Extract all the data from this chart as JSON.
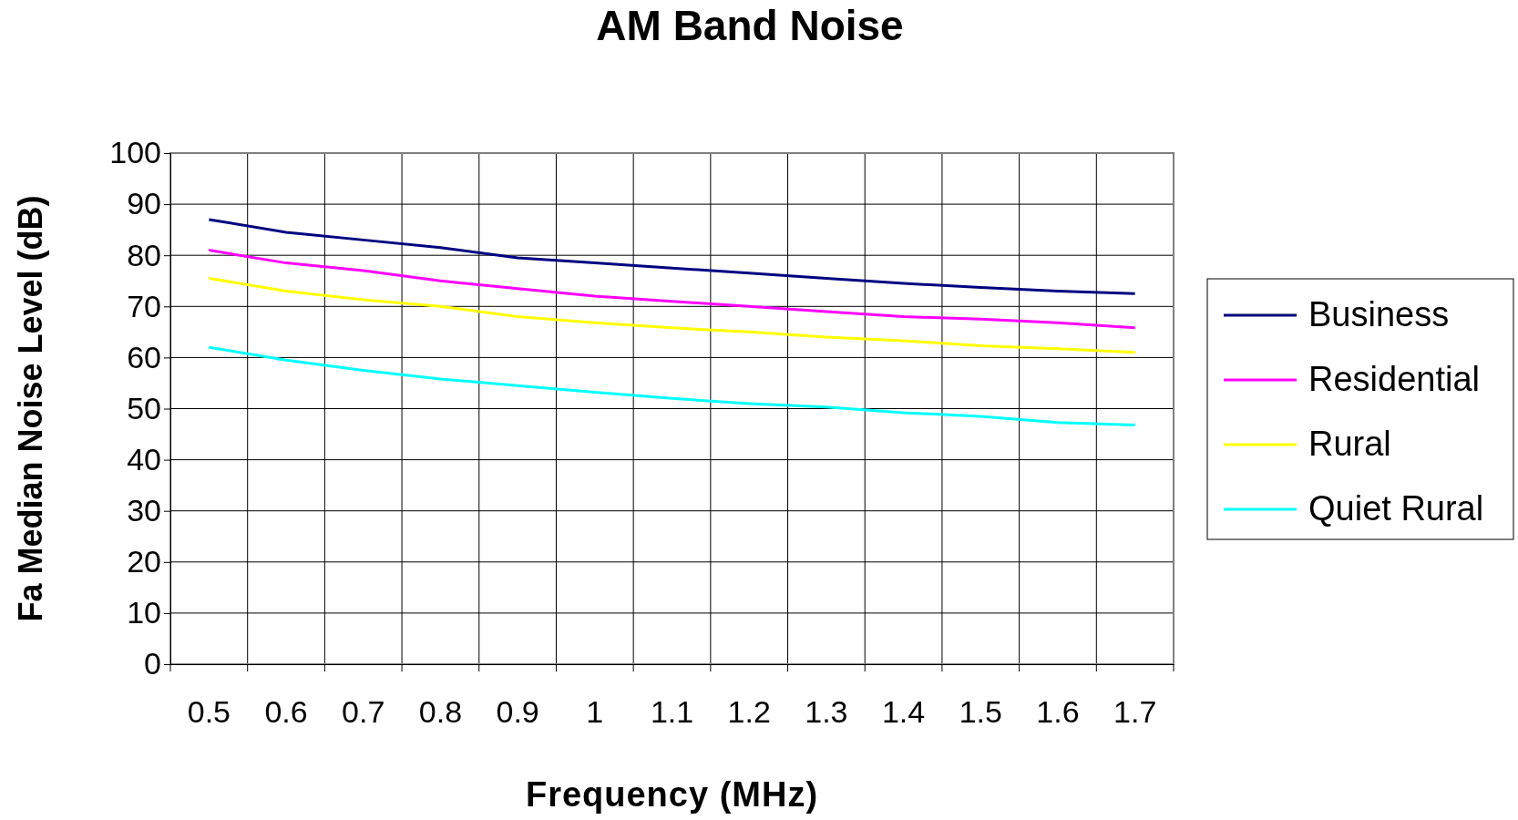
{
  "chart_data": {
    "type": "line",
    "title": "AM Band Noise",
    "xlabel": "Frequency (MHz)",
    "ylabel": "Fa Median Noise Level (dB)",
    "categories": [
      "0.5",
      "0.6",
      "0.7",
      "0.8",
      "0.9",
      "1",
      "1.1",
      "1.2",
      "1.3",
      "1.4",
      "1.5",
      "1.6",
      "1.7"
    ],
    "ylim": [
      0,
      100
    ],
    "yticks": [
      0,
      10,
      20,
      30,
      40,
      50,
      60,
      70,
      80,
      90,
      100
    ],
    "grid": true,
    "legend": "right",
    "marker": "none",
    "line_style": "solid",
    "series": [
      {
        "name": "Business",
        "color": "#000080",
        "values": [
          87,
          84.5,
          83,
          81.5,
          79.5,
          78.5,
          77.5,
          76.5,
          75.5,
          74.5,
          73.7,
          73,
          72.5
        ]
      },
      {
        "name": "Residential",
        "color": "#ff00ff",
        "values": [
          81,
          78.5,
          77,
          75,
          73.5,
          72,
          71,
          70,
          69,
          68,
          67.5,
          66.8,
          65.8
        ]
      },
      {
        "name": "Rural",
        "color": "#ffff00",
        "values": [
          75.5,
          73,
          71.3,
          70,
          68,
          66.8,
          65.8,
          65,
          64,
          63.3,
          62.3,
          61.7,
          61
        ]
      },
      {
        "name": "Quiet Rural",
        "color": "#00ffff",
        "values": [
          62,
          59.5,
          57.5,
          55.8,
          54.5,
          53.2,
          52,
          51,
          50.3,
          49.2,
          48.5,
          47.3,
          46.8
        ]
      }
    ]
  }
}
